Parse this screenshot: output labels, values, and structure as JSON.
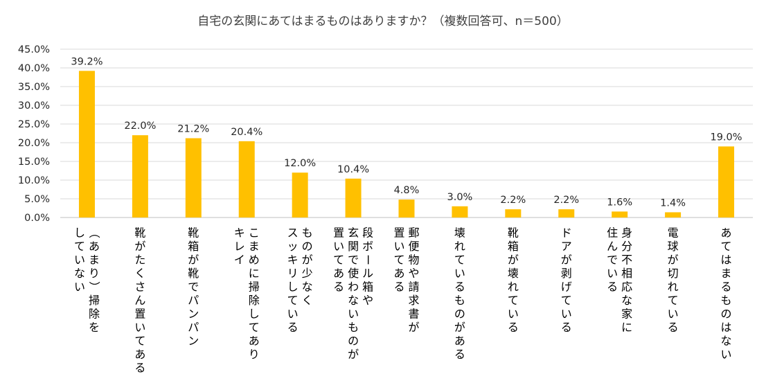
{
  "chart_data": {
    "type": "bar",
    "title": "自宅の玄関にあてはまるものはありますか？（複数回答可、n＝500）",
    "xlabel": "",
    "ylabel": "",
    "ylim": [
      0,
      45
    ],
    "ytick_step": 5,
    "ytick_labels": [
      "0.0%",
      "5.0%",
      "10.0%",
      "15.0%",
      "20.0%",
      "25.0%",
      "30.0%",
      "35.0%",
      "40.0%",
      "45.0%"
    ],
    "grid": true,
    "bar_color": "#FFC000",
    "categories": [
      [
        "（あまり）掃除を",
        "していない"
      ],
      [
        "靴がたくさん置いてある"
      ],
      [
        "靴箱が靴でパンパン"
      ],
      [
        "こまめに掃除してあり",
        "キレイ"
      ],
      [
        "ものが少なく",
        "スッキリしている"
      ],
      [
        "段ボール箱や",
        "玄関で使わないものが",
        "置いてある"
      ],
      [
        "郵便物や請求書が",
        "置いてある"
      ],
      [
        "壊れているものがある"
      ],
      [
        "靴箱が壊れている"
      ],
      [
        "ドアが剥げている"
      ],
      [
        "身分不相応な家に",
        "住んでいる"
      ],
      [
        "電球が切れている"
      ],
      [
        "あてはまるものはない"
      ]
    ],
    "values": [
      39.2,
      22.0,
      21.2,
      20.4,
      12.0,
      10.4,
      4.8,
      3.0,
      2.2,
      2.2,
      1.6,
      1.4,
      19.0
    ],
    "data_labels": [
      "39.2%",
      "22.0%",
      "21.2%",
      "20.4%",
      "12.0%",
      "10.4%",
      "4.8%",
      "3.0%",
      "2.2%",
      "2.2%",
      "1.6%",
      "1.4%",
      "19.0%"
    ]
  }
}
